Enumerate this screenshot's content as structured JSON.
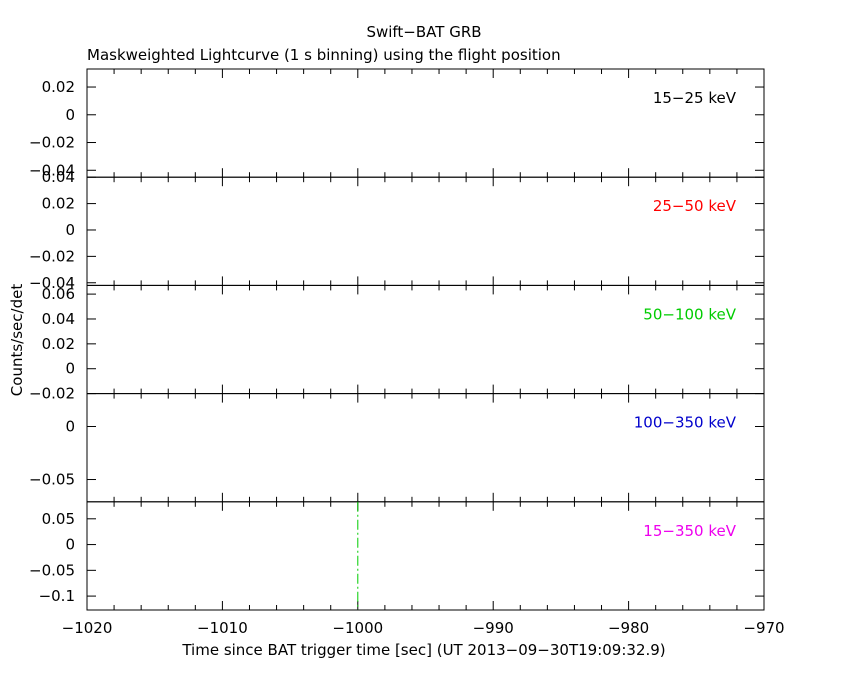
{
  "chart_data": {
    "type": "line",
    "title": "Swift−BAT GRB",
    "subtitle": "Maskweighted Lightcurve (1 s binning) using the flight position",
    "xlabel": "Time since BAT trigger time [sec] (UT 2013−09−30T19:09:32.9)",
    "ylabel": "Counts/sec/det",
    "xlim": [
      -1020,
      -970
    ],
    "x_ticks": [
      {
        "value": -1020,
        "label": "−1020"
      },
      {
        "value": -1010,
        "label": "−1010"
      },
      {
        "value": -1000,
        "label": "−1000"
      },
      {
        "value": -990,
        "label": "−990"
      },
      {
        "value": -980,
        "label": "−980"
      },
      {
        "value": -970,
        "label": "−970"
      }
    ],
    "trigger_marker": {
      "x": -1000,
      "color": "#00cc00",
      "panel_index": 4
    },
    "panels": [
      {
        "band": "15−25 keV",
        "color": "#000000",
        "ylim": [
          -0.045,
          0.033
        ],
        "y_ticks": [
          {
            "value": 0.02,
            "label": "0.02"
          },
          {
            "value": 0,
            "label": "0"
          },
          {
            "value": -0.02,
            "label": "−0.02"
          },
          {
            "value": -0.04,
            "label": "−0.04"
          }
        ]
      },
      {
        "band": "25−50 keV",
        "color": "#ff0000",
        "ylim": [
          -0.042,
          0.04
        ],
        "y_ticks": [
          {
            "value": 0.04,
            "label": "0.04"
          },
          {
            "value": 0.02,
            "label": "0.02"
          },
          {
            "value": 0,
            "label": "0"
          },
          {
            "value": -0.02,
            "label": "−0.02"
          },
          {
            "value": -0.04,
            "label": "−0.04"
          }
        ]
      },
      {
        "band": "50−100 keV",
        "color": "#00cc00",
        "ylim": [
          -0.02,
          0.067
        ],
        "y_ticks": [
          {
            "value": 0.06,
            "label": "0.06"
          },
          {
            "value": 0.04,
            "label": "0.04"
          },
          {
            "value": 0.02,
            "label": "0.02"
          },
          {
            "value": 0,
            "label": "0"
          },
          {
            "value": -0.02,
            "label": "−0.02"
          }
        ]
      },
      {
        "band": "100−350 keV",
        "color": "#0000cc",
        "ylim": [
          -0.071,
          0.031
        ],
        "y_ticks": [
          {
            "value": 0,
            "label": "0"
          },
          {
            "value": -0.05,
            "label": "−0.05"
          }
        ]
      },
      {
        "band": "15−350 keV",
        "color": "#ee00ee",
        "ylim": [
          -0.127,
          0.083
        ],
        "y_ticks": [
          {
            "value": 0.05,
            "label": "0.05"
          },
          {
            "value": 0,
            "label": "0"
          },
          {
            "value": -0.05,
            "label": "−0.05"
          },
          {
            "value": -0.1,
            "label": "−0.1"
          }
        ]
      }
    ],
    "series": [
      {
        "name": "15−25 keV",
        "x": [],
        "y": []
      },
      {
        "name": "25−50 keV",
        "x": [],
        "y": []
      },
      {
        "name": "50−100 keV",
        "x": [],
        "y": []
      },
      {
        "name": "100−350 keV",
        "x": [],
        "y": []
      },
      {
        "name": "15−350 keV",
        "x": [],
        "y": []
      }
    ],
    "grid": false
  }
}
